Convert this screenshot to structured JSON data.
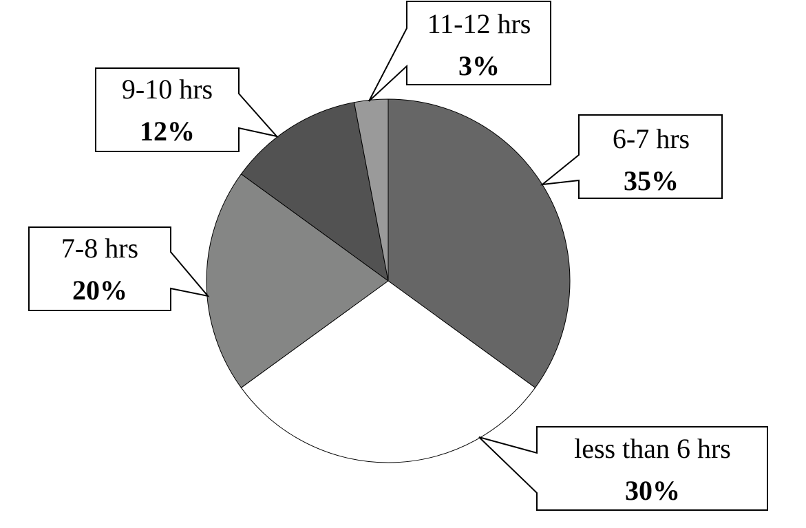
{
  "chart_data": {
    "type": "pie",
    "start_angle_deg": 0,
    "direction": "clockwise",
    "slices": [
      {
        "label": "6-7 hrs",
        "value": 35,
        "value_label": "35%",
        "color": "#666666"
      },
      {
        "label": "less than 6 hrs",
        "value": 30,
        "value_label": "30%",
        "color": "#ffffff"
      },
      {
        "label": "7-8 hrs",
        "value": 20,
        "value_label": "20%",
        "color": "#858685"
      },
      {
        "label": "9-10 hrs",
        "value": 12,
        "value_label": "12%",
        "color": "#525252"
      },
      {
        "label": "11-12 hrs",
        "value": 3,
        "value_label": "3%",
        "color": "#9a9a9a"
      }
    ],
    "legend": "none",
    "data_labels": "callouts"
  }
}
